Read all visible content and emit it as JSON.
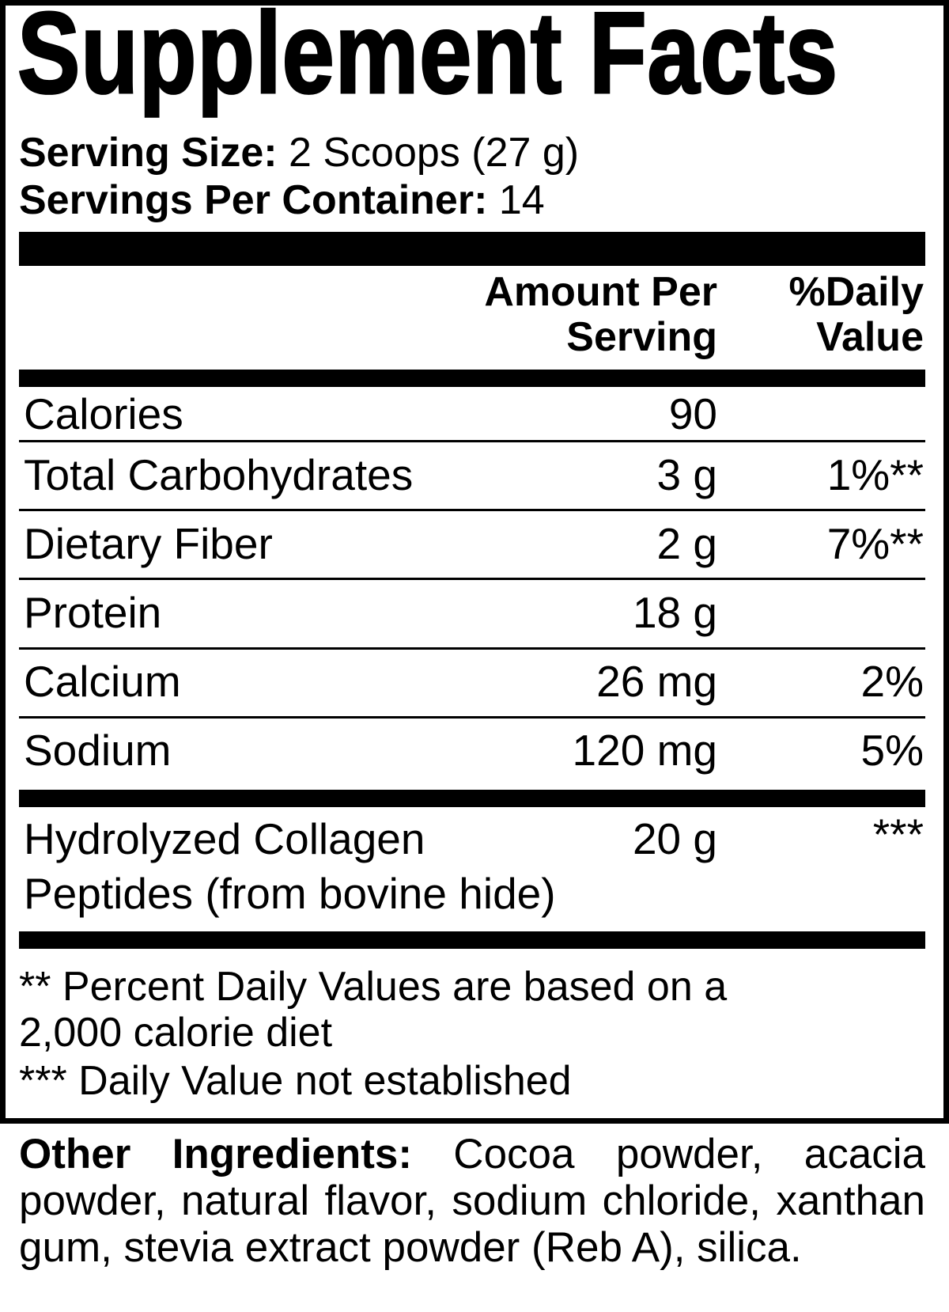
{
  "title": "Supplement Facts",
  "serving": {
    "size_label": "Serving Size:",
    "size_value": " 2 Scoops (27 g)",
    "per_container_label": "Servings Per Container:",
    "per_container_value": " 14"
  },
  "header": {
    "amount_line1": "Amount Per",
    "amount_line2": "Serving",
    "dv_line1": "%Daily",
    "dv_line2": "Value"
  },
  "rows": [
    {
      "name": "Calories",
      "amount": "90",
      "dv": ""
    },
    {
      "name": "Total Carbohydrates",
      "amount": "3 g",
      "dv": "1%**"
    },
    {
      "name": "Dietary Fiber",
      "amount": "2 g",
      "dv": "7%**"
    },
    {
      "name": "Protein",
      "amount": "18 g",
      "dv": ""
    },
    {
      "name": "Calcium",
      "amount": "26 mg",
      "dv": "2%"
    },
    {
      "name": "Sodium",
      "amount": "120 mg",
      "dv": "5%"
    }
  ],
  "collagen": {
    "name_line1": "Hydrolyzed Collagen",
    "name_line2": "Peptides (from bovine hide)",
    "amount": "20 g",
    "dv": "***"
  },
  "footnotes": {
    "line1": "** Percent Daily Values are based on a",
    "line2": "2,000 calorie diet",
    "line3": "*** Daily Value not established"
  },
  "other_ingredients": {
    "label": "Other Ingredients:",
    "text": " Cocoa powder, acacia powder, natural flavor, sodium chloride, xanthan gum, stevia extract powder (Reb A), silica."
  }
}
